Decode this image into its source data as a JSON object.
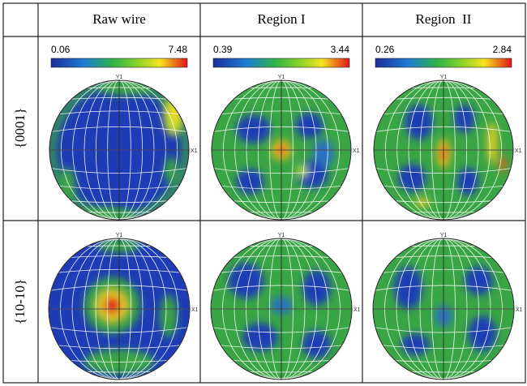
{
  "header": {
    "columns": [
      "Raw wire",
      "Region I",
      "Region  II"
    ]
  },
  "rows": [
    {
      "label": "{0001}",
      "scales": [
        {
          "min": 0.06,
          "max": 7.48
        },
        {
          "min": 0.39,
          "max": 3.44
        },
        {
          "min": 0.26,
          "max": 2.84
        }
      ]
    },
    {
      "label": "{10-10}"
    }
  ],
  "axis_labels": {
    "y": "Y1",
    "x": "X1"
  }
}
